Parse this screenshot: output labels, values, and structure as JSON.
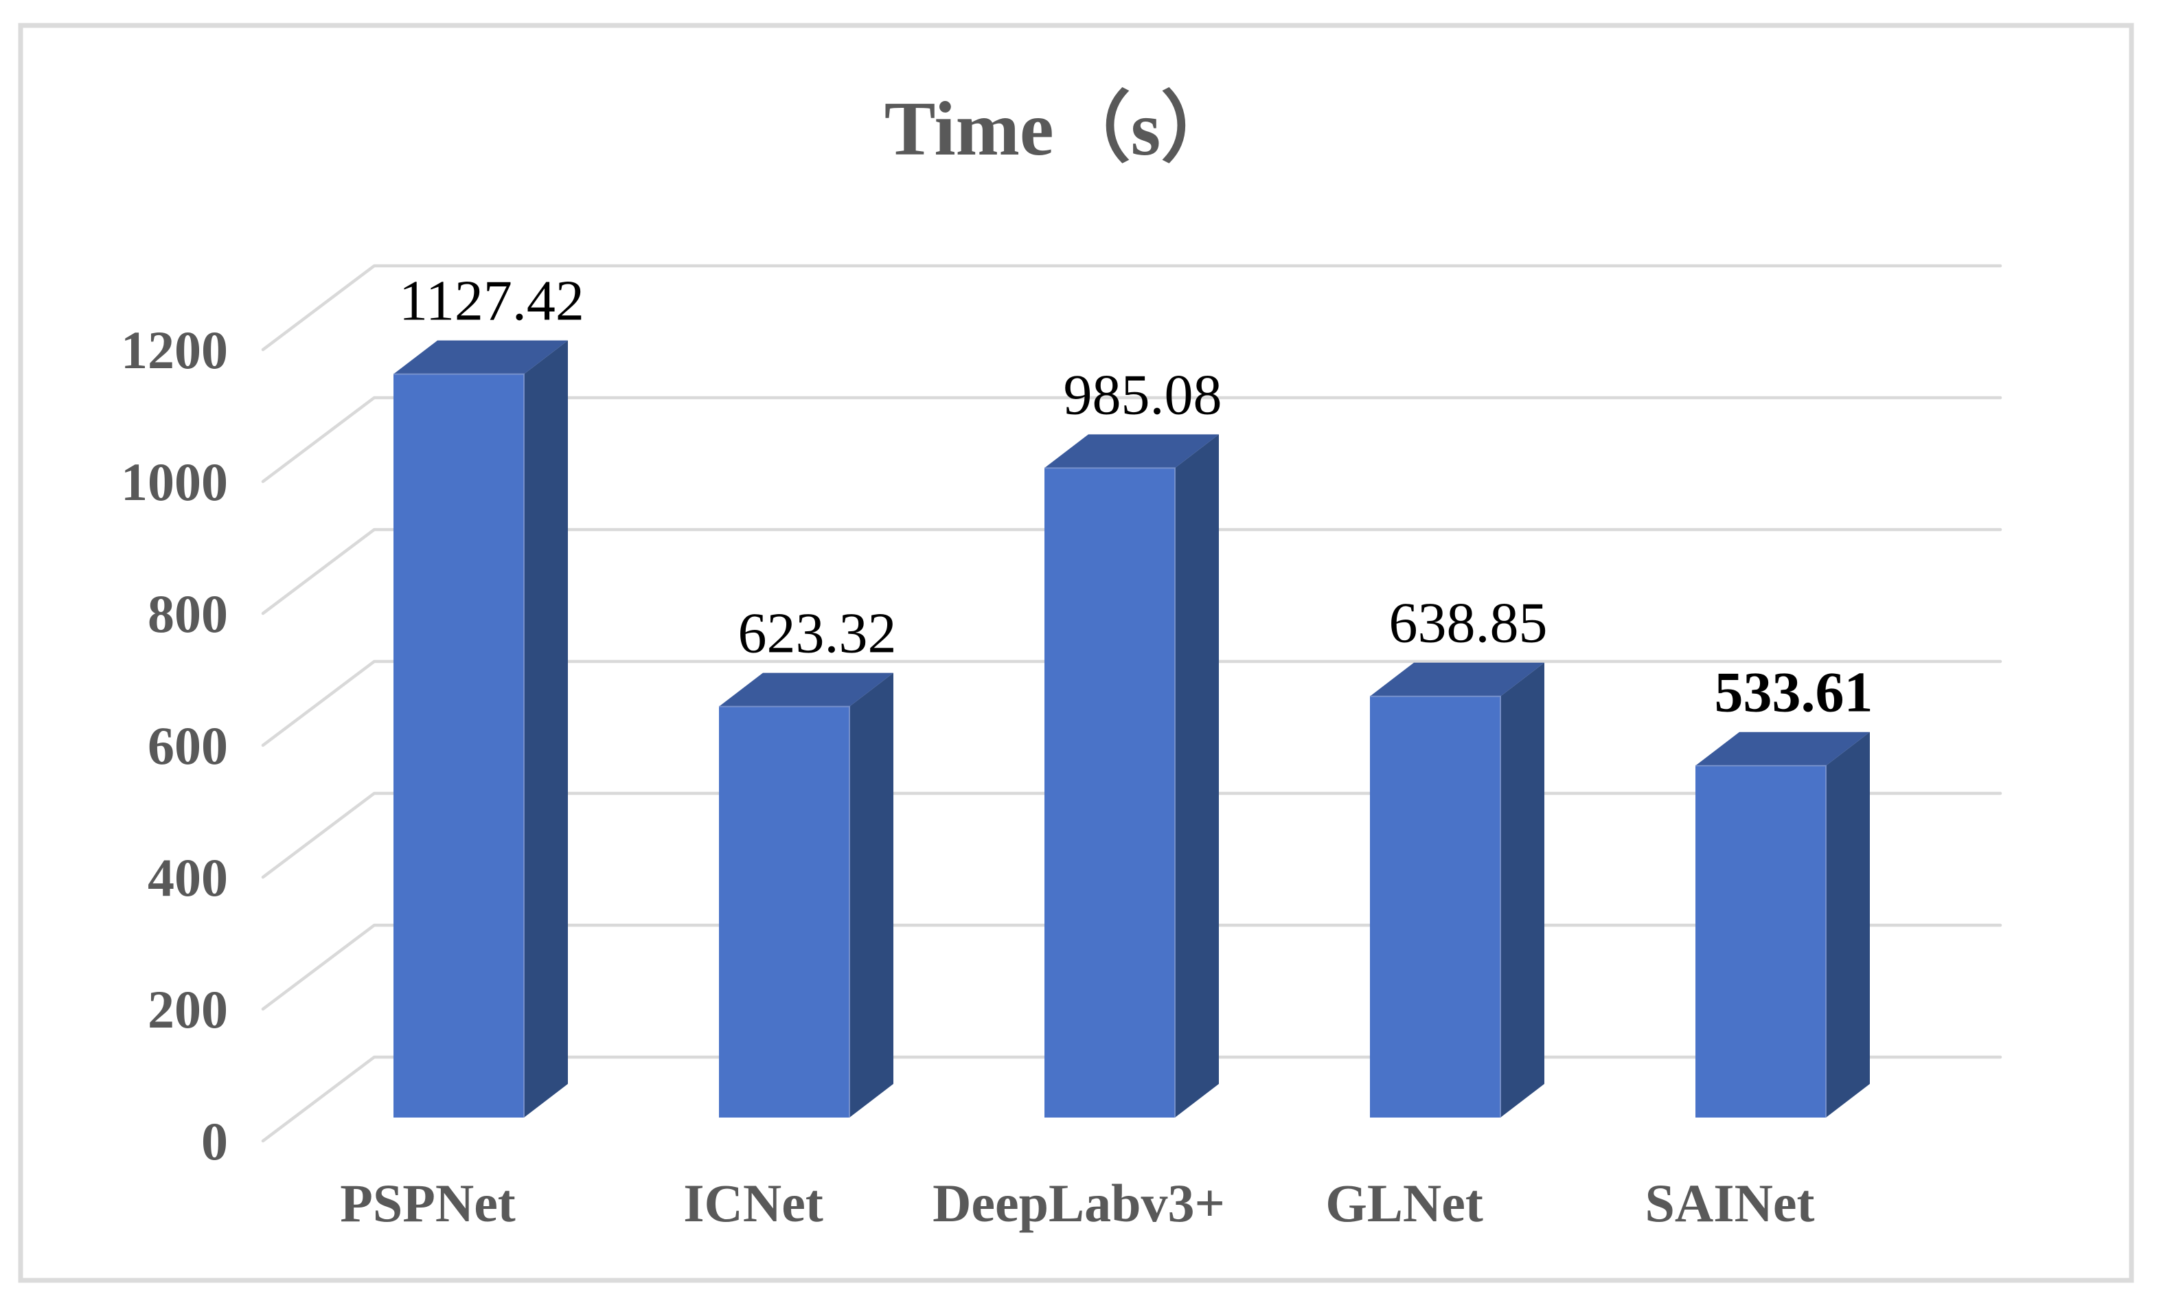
{
  "chart_data": {
    "type": "bar",
    "variant": "3d-column",
    "title": "Time（s）",
    "categories": [
      "PSPNet",
      "ICNet",
      "DeepLabv3+",
      "GLNet",
      "SAINet"
    ],
    "values": [
      1127.42,
      623.32,
      985.08,
      638.85,
      533.61
    ],
    "data_labels": [
      "1127.42",
      "623.32",
      "985.08",
      "638.85",
      "533.61"
    ],
    "data_label_bold": [
      false,
      false,
      false,
      false,
      true
    ],
    "series_name": "Time (s)",
    "xlabel": "",
    "ylabel": "",
    "y_axis": {
      "min": 0,
      "max": 1200,
      "step": 200,
      "ticks": [
        0,
        200,
        400,
        600,
        800,
        1000,
        1200
      ],
      "tick_labels": [
        "0",
        "200",
        "400",
        "600",
        "800",
        "1000",
        "1200"
      ]
    },
    "grid": true,
    "legend_position": "none",
    "colors": {
      "bar_front": "#4A73C8",
      "bar_side": "#2E4B7E",
      "bar_top": "#3A5A9C",
      "edge_highlight": "#7E97CF",
      "gridline": "#D9D9D9",
      "frame_border": "#DBDBDB",
      "axis_text": "#595959",
      "data_label_text": "#000000",
      "background": "#FFFFFF"
    }
  }
}
